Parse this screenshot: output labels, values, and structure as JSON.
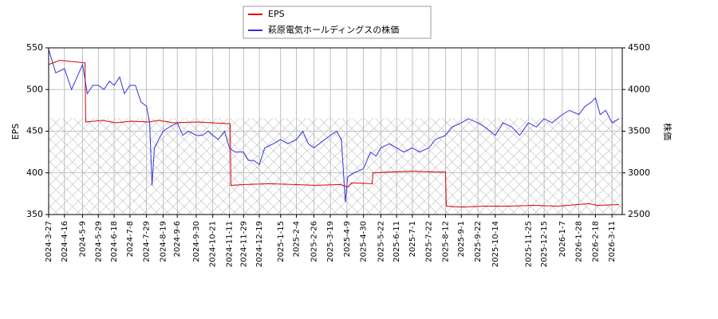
{
  "chart_data": {
    "type": "line",
    "ylabel": "EPS",
    "y2label": "株価",
    "xlim": [
      "2024-3-27",
      "2026-3-24"
    ],
    "xticks": [
      "2024-3-27",
      "2024-4-16",
      "2024-5-9",
      "2024-5-29",
      "2024-6-18",
      "2024-7-8",
      "2024-7-29",
      "2024-8-19",
      "2024-9-6",
      "2024-9-30",
      "2024-10-21",
      "2024-11-11",
      "2024-11-29",
      "2024-12-19",
      "2025-1-15",
      "2025-2-4",
      "2025-2-26",
      "2025-3-19",
      "2025-4-9",
      "2025-4-30",
      "2025-5-22",
      "2025-6-11",
      "2025-7-1",
      "2025-7-22",
      "2025-8-12",
      "2025-9-1",
      "2025-9-22",
      "2025-10-14",
      "2025-11-25",
      "2025-12-15",
      "2026-1-7",
      "2026-1-28",
      "2026-2-18",
      "2026-3-11"
    ],
    "ylim": [
      350,
      550
    ],
    "yticks": [
      350,
      400,
      450,
      500,
      550
    ],
    "y2lim": [
      2500,
      4500
    ],
    "y2ticks": [
      2500,
      3000,
      3500,
      4000,
      4500
    ],
    "grid": true,
    "legend": "upper center",
    "series": [
      {
        "name": "EPS",
        "color": "#dd0000",
        "x": [
          "2024-3-27",
          "2024-4-10",
          "2024-5-1",
          "2024-5-12",
          "2024-5-13",
          "2024-6-3",
          "2024-6-20",
          "2024-7-10",
          "2024-8-1",
          "2024-8-13",
          "2024-9-1",
          "2024-10-1",
          "2024-10-21",
          "2024-11-12",
          "2024-11-13",
          "2024-12-1",
          "2025-1-1",
          "2025-2-1",
          "2025-3-1",
          "2025-4-1",
          "2025-4-10",
          "2025-4-15",
          "2025-5-11",
          "2025-5-12",
          "2025-6-1",
          "2025-7-1",
          "2025-8-1",
          "2025-8-12",
          "2025-8-13",
          "2025-9-1",
          "2025-10-1",
          "2025-11-1",
          "2025-12-1",
          "2026-1-1",
          "2026-2-10",
          "2026-2-20",
          "2026-3-20"
        ],
        "values": [
          530,
          535,
          533,
          532,
          461,
          463,
          460,
          462,
          461,
          463,
          460,
          461,
          460,
          459,
          385,
          386,
          387,
          386,
          385,
          386,
          383,
          388,
          387,
          400,
          401,
          402,
          401,
          401,
          360,
          359,
          360,
          360,
          361,
          360,
          363,
          361,
          362
        ]
      },
      {
        "name": "萩原電気ホールディングスの株価",
        "color": "#3333dd",
        "axis": "y2",
        "x": [
          "2024-3-27",
          "2024-4-5",
          "2024-4-16",
          "2024-4-25",
          "2024-5-2",
          "2024-5-9",
          "2024-5-15",
          "2024-5-22",
          "2024-5-29",
          "2024-6-5",
          "2024-6-12",
          "2024-6-18",
          "2024-6-25",
          "2024-7-1",
          "2024-7-8",
          "2024-7-15",
          "2024-7-22",
          "2024-7-29",
          "2024-8-2",
          "2024-8-5",
          "2024-8-8",
          "2024-8-19",
          "2024-8-27",
          "2024-9-6",
          "2024-9-13",
          "2024-9-20",
          "2024-9-30",
          "2024-10-8",
          "2024-10-15",
          "2024-10-21",
          "2024-10-28",
          "2024-11-5",
          "2024-11-11",
          "2024-11-18",
          "2024-11-29",
          "2024-12-5",
          "2024-12-12",
          "2024-12-19",
          "2024-12-26",
          "2025-1-6",
          "2025-1-15",
          "2025-1-24",
          "2025-2-4",
          "2025-2-12",
          "2025-2-19",
          "2025-2-26",
          "2025-3-5",
          "2025-3-12",
          "2025-3-19",
          "2025-3-27",
          "2025-4-2",
          "2025-4-7",
          "2025-4-10",
          "2025-4-18",
          "2025-4-30",
          "2025-5-9",
          "2025-5-16",
          "2025-5-22",
          "2025-6-2",
          "2025-6-11",
          "2025-6-20",
          "2025-7-1",
          "2025-7-10",
          "2025-7-22",
          "2025-7-30",
          "2025-8-12",
          "2025-8-20",
          "2025-9-1",
          "2025-9-10",
          "2025-9-22",
          "2025-10-1",
          "2025-10-14",
          "2025-10-24",
          "2025-11-4",
          "2025-11-14",
          "2025-11-25",
          "2025-12-5",
          "2025-12-15",
          "2025-12-25",
          "2026-1-7",
          "2026-1-16",
          "2026-1-28",
          "2026-2-5",
          "2026-2-13",
          "2026-2-18",
          "2026-2-24",
          "2026-3-3",
          "2026-3-11",
          "2026-3-20"
        ],
        "values": [
          4480,
          4200,
          4250,
          4000,
          4150,
          4300,
          3950,
          4050,
          4050,
          4000,
          4100,
          4050,
          4150,
          3950,
          4050,
          4050,
          3850,
          3800,
          3600,
          2850,
          3300,
          3500,
          3550,
          3600,
          3450,
          3500,
          3450,
          3450,
          3500,
          3450,
          3400,
          3500,
          3300,
          3250,
          3250,
          3150,
          3150,
          3100,
          3300,
          3350,
          3400,
          3350,
          3400,
          3500,
          3350,
          3300,
          3350,
          3400,
          3450,
          3500,
          3400,
          2650,
          2950,
          3000,
          3050,
          3250,
          3200,
          3300,
          3350,
          3300,
          3250,
          3300,
          3250,
          3300,
          3400,
          3450,
          3550,
          3600,
          3650,
          3600,
          3550,
          3450,
          3600,
          3550,
          3450,
          3600,
          3550,
          3650,
          3600,
          3700,
          3750,
          3700,
          3800,
          3850,
          3900,
          3700,
          3750,
          3600,
          3650
        ]
      }
    ]
  }
}
